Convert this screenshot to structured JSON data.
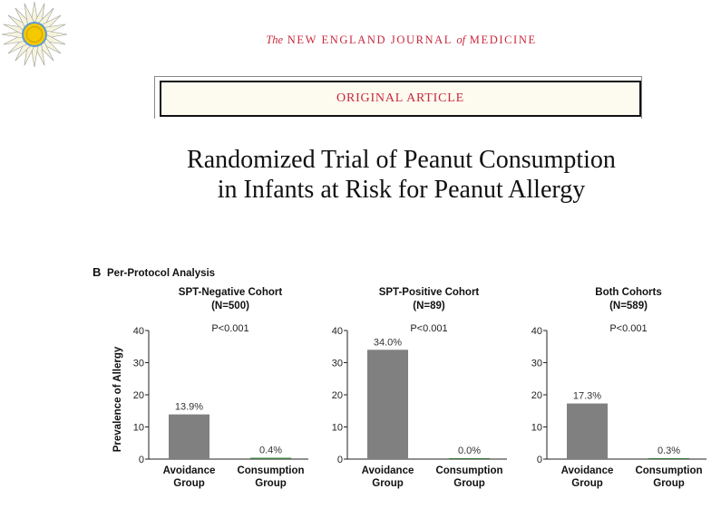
{
  "header": {
    "journal_prefix": "The",
    "journal_name_1": "NEW ENGLAND JOURNAL",
    "journal_of": "of",
    "journal_name_2": "MEDICINE",
    "banner": "ORIGINAL ARTICLE",
    "title_line1": "Randomized Trial of Peanut Consumption",
    "title_line2": "in Infants at Risk for Peanut Allergy"
  },
  "colors": {
    "avoidance": "#808080",
    "consumption": "#3a7a3a",
    "accent": "#c8283c"
  },
  "chart_data": {
    "panel_label": "B",
    "panel_title": "Per-Protocol Analysis",
    "charts": [
      {
        "type": "bar",
        "title": "SPT-Negative Cohort",
        "subtitle": "(N=500)",
        "pvalue": "P<0.001",
        "ylabel": "Prevalence of Allergy",
        "ylim": [
          0,
          40
        ],
        "yticks": [
          0,
          10,
          20,
          30,
          40
        ],
        "categories": [
          [
            "Avoidance",
            "Group"
          ],
          [
            "Consumption",
            "Group"
          ]
        ],
        "values": [
          13.9,
          0.4
        ],
        "labels": [
          "13.9%",
          "0.4%"
        ]
      },
      {
        "type": "bar",
        "title": "SPT-Positive Cohort",
        "subtitle": "(N=89)",
        "pvalue": "P<0.001",
        "ylabel": "",
        "ylim": [
          0,
          40
        ],
        "yticks": [
          0,
          10,
          20,
          30,
          40
        ],
        "categories": [
          [
            "Avoidance",
            "Group"
          ],
          [
            "Consumption",
            "Group"
          ]
        ],
        "values": [
          34.0,
          0.0
        ],
        "labels": [
          "34.0%",
          "0.0%"
        ]
      },
      {
        "type": "bar",
        "title": "Both Cohorts",
        "subtitle": "(N=589)",
        "pvalue": "P<0.001",
        "ylabel": "",
        "ylim": [
          0,
          40
        ],
        "yticks": [
          0,
          10,
          20,
          30,
          40
        ],
        "categories": [
          [
            "Avoidance",
            "Group"
          ],
          [
            "Consumption",
            "Group"
          ]
        ],
        "values": [
          17.3,
          0.3
        ],
        "labels": [
          "17.3%",
          "0.3%"
        ]
      }
    ]
  }
}
